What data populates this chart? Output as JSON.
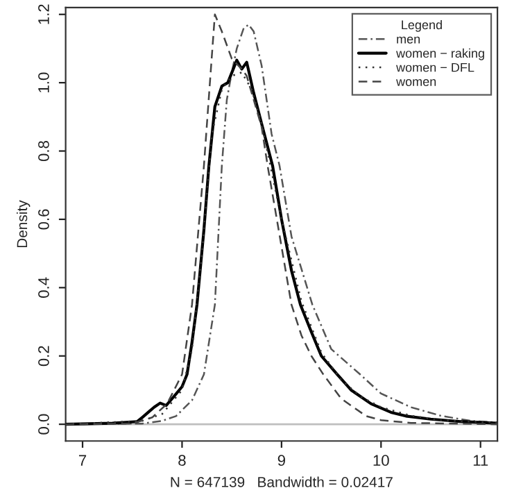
{
  "chart_data": {
    "type": "line",
    "xlabel": "N = 647139   Bandwidth = 0.02417",
    "ylabel": "Density",
    "legend_title": "Legend",
    "legend": "top right",
    "grid": false,
    "marker": "none",
    "xlim": [
      6.83,
      11.17
    ],
    "xticks": [
      7,
      8,
      9,
      10,
      11
    ],
    "ylim": [
      -0.049,
      1.22
    ],
    "yticks": [
      {
        "value": 0,
        "label": "0.0"
      },
      0.2,
      0.4,
      0.6,
      0.8,
      {
        "value": 1,
        "label": "1.0"
      },
      1.2
    ],
    "ref_lines": [
      {
        "axis": "y",
        "value": 0,
        "color": "#bebebe"
      }
    ],
    "series": [
      {
        "name": "men",
        "color": "#555555",
        "line_style": "dashdot",
        "x": [
          6.83,
          7.6,
          7.8,
          7.94,
          8.1,
          8.22,
          8.33,
          8.4,
          8.45,
          8.5,
          8.55,
          8.62,
          8.67,
          8.72,
          8.8,
          8.9,
          8.98,
          9.1,
          9.31,
          9.5,
          9.79,
          10.0,
          10.3,
          10.6,
          10.9,
          11.17
        ],
        "values": [
          0,
          0.002,
          0.01,
          0.024,
          0.07,
          0.146,
          0.35,
          0.757,
          0.95,
          1.03,
          1.1,
          1.16,
          1.17,
          1.15,
          1.05,
          0.85,
          0.757,
          0.55,
          0.35,
          0.22,
          0.146,
          0.09,
          0.05,
          0.025,
          0.01,
          0.005
        ]
      },
      {
        "name": "women − raking",
        "color": "#000000",
        "line_style": "solid",
        "x": [
          6.83,
          7.3,
          7.55,
          7.6,
          7.66,
          7.72,
          7.78,
          7.84,
          7.9,
          8.0,
          8.05,
          8.1,
          8.15,
          8.22,
          8.27,
          8.33,
          8.4,
          8.46,
          8.55,
          8.6,
          8.65,
          8.72,
          8.8,
          8.91,
          9.0,
          9.1,
          9.19,
          9.3,
          9.4,
          9.56,
          9.7,
          9.9,
          10.1,
          10.25,
          10.5,
          10.8,
          11.17
        ],
        "values": [
          0,
          0.003,
          0.008,
          0.02,
          0.035,
          0.05,
          0.062,
          0.055,
          0.075,
          0.11,
          0.146,
          0.24,
          0.35,
          0.57,
          0.757,
          0.93,
          0.99,
          1.0,
          1.066,
          1.04,
          1.06,
          0.97,
          0.88,
          0.757,
          0.6,
          0.45,
          0.35,
          0.27,
          0.2,
          0.146,
          0.1,
          0.06,
          0.035,
          0.024,
          0.015,
          0.008,
          0.003
        ]
      },
      {
        "name": "women − DFL",
        "color": "#333333",
        "line_style": "dotted",
        "x": [
          6.83,
          7.6,
          7.8,
          8.0,
          8.1,
          8.2,
          8.3,
          8.4,
          8.5,
          8.6,
          8.7,
          8.8,
          8.9,
          9.0,
          9.2,
          9.4,
          9.6,
          9.8,
          10.0,
          10.3,
          10.6,
          11.17
        ],
        "values": [
          0,
          0.01,
          0.03,
          0.1,
          0.22,
          0.5,
          0.85,
          0.98,
          1.02,
          1.03,
          0.98,
          0.88,
          0.74,
          0.6,
          0.36,
          0.21,
          0.13,
          0.08,
          0.05,
          0.025,
          0.012,
          0.004
        ]
      },
      {
        "name": "women",
        "color": "#444444",
        "line_style": "dashed",
        "x": [
          6.83,
          7.5,
          7.7,
          7.85,
          8.0,
          8.1,
          8.22,
          8.28,
          8.33,
          8.4,
          8.5,
          8.6,
          8.65,
          8.7,
          8.8,
          8.86,
          9.0,
          9.1,
          9.2,
          9.3,
          9.42,
          9.6,
          9.85,
          10.0,
          10.3,
          11.17
        ],
        "values": [
          0,
          0.002,
          0.02,
          0.06,
          0.146,
          0.35,
          0.757,
          1.0,
          1.2,
          1.15,
          1.07,
          1.04,
          1.02,
          0.97,
          0.87,
          0.757,
          0.52,
          0.35,
          0.26,
          0.2,
          0.146,
          0.075,
          0.024,
          0.012,
          0.004,
          0
        ]
      }
    ]
  }
}
